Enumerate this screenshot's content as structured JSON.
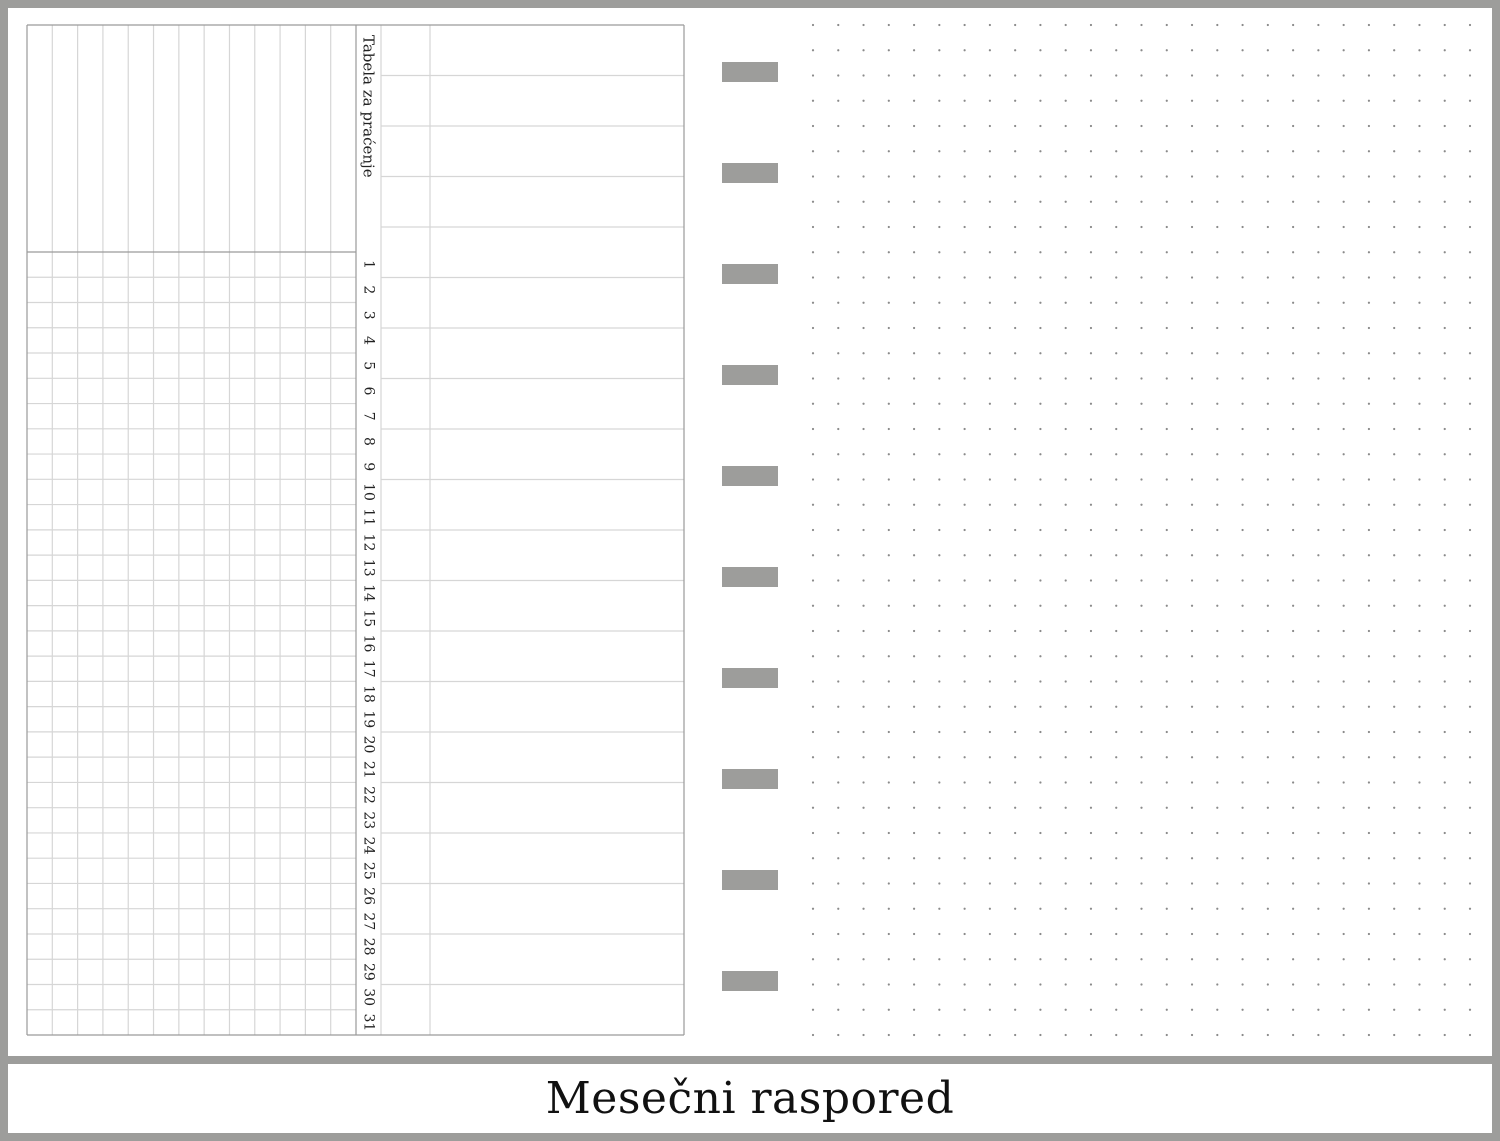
{
  "page_title": "Mesečni raspored",
  "tracker": {
    "label": "Tabela za praćenje",
    "habit_columns": 13,
    "days": [
      "1",
      "2",
      "3",
      "4",
      "5",
      "6",
      "7",
      "8",
      "9",
      "10",
      "11",
      "12",
      "13",
      "14",
      "15",
      "16",
      "17",
      "18",
      "19",
      "20",
      "21",
      "22",
      "23",
      "24",
      "25",
      "26",
      "27",
      "28",
      "29",
      "30",
      "31"
    ]
  },
  "notes": {
    "rows": 20
  },
  "tabs": {
    "count": 10
  },
  "dot_grid": {
    "columns": 27,
    "rows": 41
  },
  "colors": {
    "frame": "#9d9d9b",
    "grid_line": "#d6d6d6",
    "border_line": "#9a9a9a",
    "tab": "#9d9d9b",
    "dot": "#8a8a8a"
  }
}
